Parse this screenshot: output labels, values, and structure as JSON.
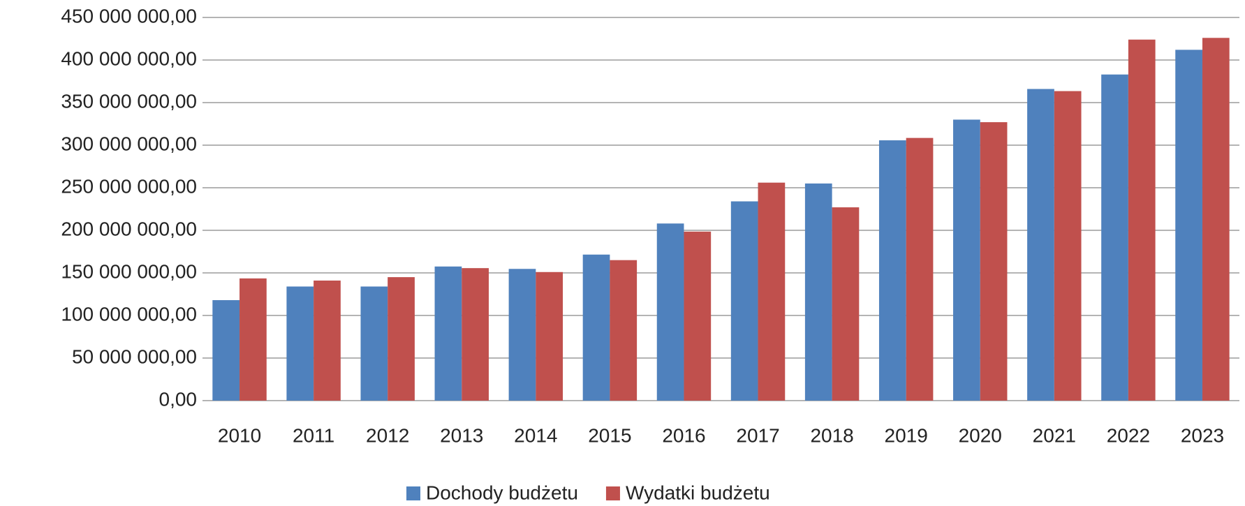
{
  "chart_data": {
    "type": "bar",
    "categories": [
      "2010",
      "2011",
      "2012",
      "2013",
      "2014",
      "2015",
      "2016",
      "2017",
      "2018",
      "2019",
      "2020",
      "2021",
      "2022",
      "2023"
    ],
    "series": [
      {
        "name": "Dochody budżetu",
        "color": "#4f81bd",
        "values": [
          118000000,
          134000000,
          134000000,
          157500000,
          154700000,
          171500000,
          208000000,
          234000000,
          255000000,
          305700000,
          330000000,
          366000000,
          383000000,
          412000000
        ]
      },
      {
        "name": "Wydatki budżetu",
        "color": "#c0504d",
        "values": [
          143500000,
          141000000,
          145000000,
          155600000,
          151000000,
          165000000,
          198500000,
          256000000,
          227000000,
          308500000,
          327000000,
          363500000,
          424000000,
          426000000
        ]
      }
    ],
    "ylim": [
      0,
      450000000
    ],
    "yticks": [
      {
        "value": 0,
        "label": "0,00"
      },
      {
        "value": 50000000,
        "label": "50 000 000,00"
      },
      {
        "value": 100000000,
        "label": "100 000 000,00"
      },
      {
        "value": 150000000,
        "label": "150 000 000,00"
      },
      {
        "value": 200000000,
        "label": "200 000 000,00"
      },
      {
        "value": 250000000,
        "label": "250 000 000,00"
      },
      {
        "value": 300000000,
        "label": "300 000 000,00"
      },
      {
        "value": 350000000,
        "label": "350 000 000,00"
      },
      {
        "value": 400000000,
        "label": "400 000 000,00"
      },
      {
        "value": 450000000,
        "label": "450 000 000,00"
      }
    ],
    "grid": true,
    "legend": "bottom"
  }
}
